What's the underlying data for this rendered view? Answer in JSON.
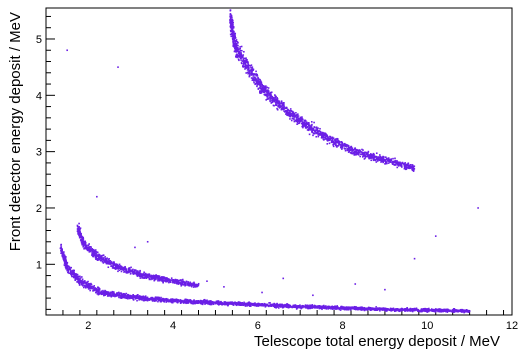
{
  "chart_data": {
    "type": "scatter",
    "title": "",
    "xlabel": "Telescope total energy deposit / MeV",
    "ylabel": "Front detector energy deposit / MeV",
    "xlim": [
      1.0,
      12.0
    ],
    "ylim": [
      0.1,
      5.55
    ],
    "x_ticks": [
      2,
      4,
      6,
      8,
      10,
      12
    ],
    "y_ticks": [
      1,
      2,
      3,
      4,
      5
    ],
    "grid": false,
    "legend": "none",
    "marker_color": "#6b1fe6",
    "bands": [
      {
        "name": "",
        "points": [
          [
            5.35,
            5.35
          ],
          [
            5.5,
            4.8
          ],
          [
            5.8,
            4.45
          ],
          [
            6.2,
            4.05
          ],
          [
            6.8,
            3.65
          ],
          [
            7.5,
            3.3
          ],
          [
            8.3,
            3.0
          ],
          [
            9.0,
            2.85
          ],
          [
            9.7,
            2.7
          ]
        ],
        "width": [
          0.18,
          0.16,
          0.13,
          0.11,
          0.09,
          0.08,
          0.07,
          0.06,
          0.05
        ]
      },
      {
        "name": "",
        "points": [
          [
            1.75,
            1.65
          ],
          [
            1.9,
            1.35
          ],
          [
            2.2,
            1.15
          ],
          [
            2.7,
            0.95
          ],
          [
            3.3,
            0.8
          ],
          [
            4.0,
            0.7
          ],
          [
            4.6,
            0.62
          ]
        ],
        "width": [
          0.09,
          0.08,
          0.07,
          0.06,
          0.05,
          0.045,
          0.04
        ]
      },
      {
        "name": "",
        "points": [
          [
            1.35,
            1.3
          ],
          [
            1.5,
            0.95
          ],
          [
            1.8,
            0.7
          ],
          [
            2.3,
            0.5
          ],
          [
            3.0,
            0.42
          ],
          [
            4.0,
            0.35
          ],
          [
            5.5,
            0.3
          ],
          [
            7.0,
            0.25
          ],
          [
            9.0,
            0.2
          ],
          [
            11.0,
            0.17
          ]
        ],
        "width": [
          0.08,
          0.08,
          0.07,
          0.05,
          0.04,
          0.035,
          0.03,
          0.03,
          0.025,
          0.025
        ]
      }
    ],
    "background_points": [
      [
        1.5,
        4.8
      ],
      [
        2.7,
        4.5
      ],
      [
        3.4,
        1.4
      ],
      [
        3.1,
        1.3
      ],
      [
        6.6,
        0.75
      ],
      [
        8.3,
        0.65
      ],
      [
        9.7,
        1.1
      ],
      [
        10.2,
        1.5
      ],
      [
        11.2,
        2.0
      ],
      [
        6.1,
        0.5
      ],
      [
        7.3,
        0.45
      ],
      [
        5.2,
        0.6
      ],
      [
        9.0,
        0.55
      ],
      [
        4.8,
        0.7
      ],
      [
        2.2,
        2.2
      ]
    ]
  }
}
